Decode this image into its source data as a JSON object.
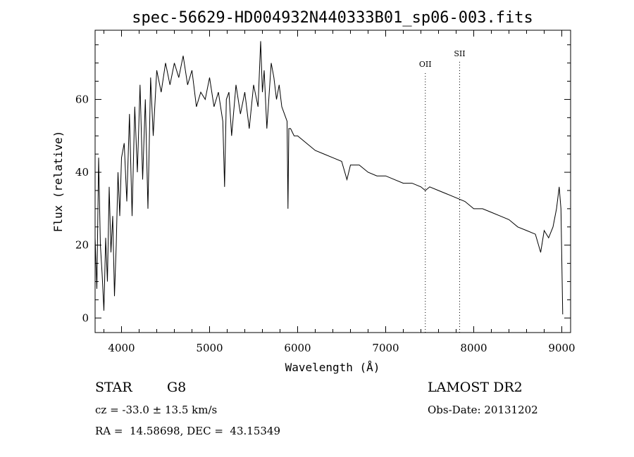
{
  "chart_data": {
    "type": "line",
    "title": "spec-56629-HD004932N440333B01_sp06-003.fits",
    "xlabel": "Wavelength (Å)",
    "ylabel": "Flux (relative)",
    "xlim": [
      3700,
      9100
    ],
    "ylim": [
      -4,
      79
    ],
    "xticks": [
      4000,
      5000,
      6000,
      7000,
      8000,
      9000
    ],
    "xtick_labels": [
      "4000",
      "5000",
      "6000",
      "7000",
      "8000",
      "9000"
    ],
    "yticks": [
      0,
      20,
      40,
      60
    ],
    "ytick_labels": [
      "0",
      "20",
      "40",
      "60"
    ],
    "grid": false,
    "line_color": "#000000",
    "series": [
      {
        "x": [
          3700,
          3720,
          3740,
          3760,
          3780,
          3800,
          3820,
          3840,
          3860,
          3880,
          3900,
          3920,
          3940,
          3960,
          3980,
          4000,
          4030,
          4060,
          4090,
          4120,
          4150,
          4180,
          4210,
          4240,
          4270,
          4300,
          4330,
          4360,
          4400,
          4450,
          4500,
          4550,
          4600,
          4650,
          4700,
          4750,
          4800,
          4850,
          4900,
          4950,
          5000,
          5050,
          5100,
          5150,
          5170,
          5190,
          5220,
          5250,
          5300,
          5350,
          5400,
          5450,
          5500,
          5550,
          5580,
          5600,
          5620,
          5650,
          5700,
          5730,
          5760,
          5790,
          5820,
          5850,
          5880,
          5890,
          5900,
          5920,
          5960,
          6000,
          6100,
          6200,
          6300,
          6400,
          6500,
          6560,
          6600,
          6700,
          6800,
          6900,
          7000,
          7100,
          7200,
          7300,
          7400,
          7450,
          7500,
          7600,
          7700,
          7800,
          7900,
          8000,
          8100,
          8200,
          8300,
          8400,
          8500,
          8600,
          8700,
          8760,
          8800,
          8850,
          8900,
          8940,
          8970,
          8990,
          9010
        ],
        "y": [
          22,
          8,
          44,
          20,
          12,
          2,
          22,
          10,
          36,
          18,
          28,
          6,
          20,
          40,
          28,
          44,
          48,
          32,
          56,
          28,
          58,
          40,
          64,
          38,
          60,
          30,
          66,
          50,
          68,
          62,
          70,
          64,
          70,
          66,
          72,
          64,
          68,
          58,
          62,
          60,
          66,
          58,
          62,
          54,
          36,
          60,
          62,
          50,
          64,
          56,
          62,
          52,
          64,
          58,
          76,
          62,
          68,
          52,
          70,
          66,
          60,
          64,
          58,
          56,
          54,
          30,
          52,
          52,
          50,
          50,
          48,
          46,
          45,
          44,
          43,
          38,
          42,
          42,
          40,
          39,
          39,
          38,
          37,
          37,
          36,
          35,
          36,
          35,
          34,
          33,
          32,
          30,
          30,
          29,
          28,
          27,
          25,
          24,
          23,
          18,
          24,
          22,
          25,
          30,
          36,
          30,
          1
        ]
      }
    ],
    "annotations": [
      {
        "label": "OII",
        "x": 7450
      },
      {
        "label": "SII",
        "x": 7840
      }
    ]
  },
  "info": {
    "class_label": "STAR",
    "subclass": "G8",
    "survey": "LAMOST DR2",
    "cz_line": "cz = -33.0 ± 13.5 km/s",
    "obs_date": "Obs-Date: 20131202",
    "radec": "RA =  14.58698, DEC =  43.15349"
  }
}
